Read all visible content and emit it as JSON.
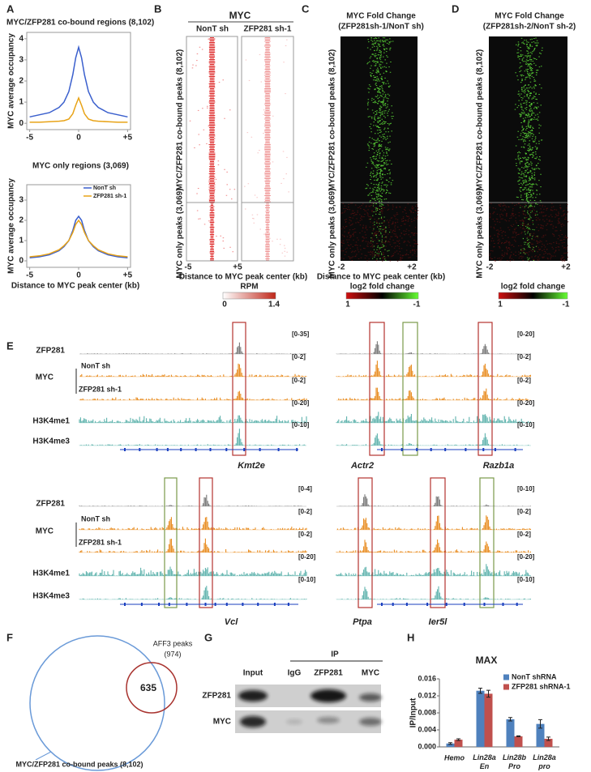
{
  "panel_labels": [
    "A",
    "B",
    "C",
    "D",
    "E",
    "F",
    "G",
    "H"
  ],
  "chart_data": [
    {
      "type": "line",
      "title": "MYC/ZFP281 co-bound regions (8,102)",
      "ylabel": "MYC average occupancy",
      "x": [
        -5,
        -4,
        -3,
        -2,
        -1.5,
        -1,
        -0.6,
        -0.3,
        0,
        0.3,
        0.6,
        1,
        1.5,
        2,
        3,
        4,
        5
      ],
      "series": [
        {
          "color": "#3a5fcd",
          "values": [
            0.3,
            0.4,
            0.5,
            0.75,
            1.0,
            1.5,
            2.3,
            3.1,
            3.6,
            3.1,
            2.3,
            1.5,
            1.0,
            0.75,
            0.5,
            0.4,
            0.3
          ]
        },
        {
          "color": "#e8a317",
          "values": [
            0.05,
            0.05,
            0.07,
            0.1,
            0.12,
            0.2,
            0.45,
            0.85,
            1.2,
            0.85,
            0.45,
            0.2,
            0.12,
            0.1,
            0.07,
            0.05,
            0.05
          ]
        }
      ],
      "xlim": [
        -5.3,
        5.3
      ],
      "xticks": [
        -5,
        0,
        {
          "value": 5,
          "label": "+5"
        }
      ],
      "ylim": [
        -0.3,
        4.3
      ],
      "yticks": [
        0,
        1,
        2,
        3,
        4
      ]
    },
    {
      "type": "line",
      "title": "MYC only regions (3,069)",
      "ylabel": "MYC average occupancy",
      "xlabel": "Distance to MYC peak center (kb)",
      "x": [
        -5,
        -4,
        -3,
        -2,
        -1.5,
        -1,
        -0.6,
        -0.3,
        0,
        0.3,
        0.6,
        1,
        1.5,
        2,
        3,
        4,
        5
      ],
      "series": [
        {
          "name": "NonT sh",
          "color": "#3a5fcd",
          "values": [
            0.15,
            0.2,
            0.3,
            0.5,
            0.7,
            1.0,
            1.5,
            2.0,
            2.2,
            2.0,
            1.5,
            1.0,
            0.7,
            0.5,
            0.3,
            0.2,
            0.15
          ]
        },
        {
          "name": "ZFP281 sh-1",
          "color": "#e8a317",
          "values": [
            0.2,
            0.25,
            0.35,
            0.55,
            0.75,
            1.0,
            1.4,
            1.8,
            2.0,
            1.8,
            1.4,
            1.0,
            0.75,
            0.55,
            0.35,
            0.25,
            0.2
          ]
        }
      ],
      "xlim": [
        -5.3,
        5.3
      ],
      "xticks": [
        -5,
        0,
        {
          "value": 5,
          "label": "+5"
        }
      ],
      "ylim": [
        -0.32,
        3.76
      ],
      "yticks": [
        0,
        1,
        2,
        3
      ],
      "legend": "upper right"
    },
    {
      "type": "bar",
      "title": "MAX",
      "ylabel": "IP/Input",
      "categories": [
        "Hemo",
        "Lin28a En",
        "Lin28b Pro",
        "Lin28a pro"
      ],
      "series": [
        {
          "name": "NonT shRNA",
          "color": "#4f81bd",
          "values": [
            0.0008,
            0.0132,
            0.0065,
            0.0054
          ],
          "errors": [
            0.0002,
            0.0006,
            0.0004,
            0.001
          ]
        },
        {
          "name": "ZFP281 shRNA-1",
          "color": "#c0504d",
          "values": [
            0.0017,
            0.0125,
            0.0025,
            0.0019
          ],
          "errors": [
            0.0002,
            0.0008,
            0.0001,
            0.0004
          ]
        }
      ],
      "ylim": [
        0,
        0.016
      ],
      "yticks": [
        {
          "value": 0,
          "label": "0.000"
        },
        {
          "value": 0.004,
          "label": "0.004"
        },
        {
          "value": 0.008,
          "label": "0.008"
        },
        {
          "value": 0.012,
          "label": "0.012"
        },
        {
          "value": 0.016,
          "label": "0.016"
        }
      ],
      "legend": "upper right"
    }
  ],
  "heatmaps": {
    "b": {
      "title": "MYC",
      "columns": [
        "NonT sh",
        "ZFP281 sh-1"
      ],
      "rows": [
        "MYC/ZFP281 co-bound peaks (8,102)",
        "MYC only peaks (3,069)"
      ],
      "xticks": [
        -5,
        {
          "value": 5,
          "label": "+5"
        }
      ],
      "xlabel": "Distance to MYC peak center (kb)",
      "colorbar": {
        "label": "RPM",
        "ticks": [
          0,
          1.4
        ]
      }
    },
    "c": {
      "title": "MYC Fold Change",
      "subtitle": "(ZFP281sh-1/NonT sh)",
      "rows": [
        "MYC/ZFP281 co-bound peaks (8,102)",
        "MYC only peaks (3,069)"
      ],
      "xticks": [
        -2,
        {
          "value": 2,
          "label": "+2"
        }
      ],
      "xlabel": "Distance to MYC peak center (kb)",
      "colorbar": {
        "label": "log2 fold change",
        "ticks": [
          1,
          -1
        ]
      }
    },
    "d": {
      "title": "MYC Fold Change",
      "subtitle": "(ZFP281sh-2/NonT sh-2)",
      "rows": [
        "MYC/ZFP281 co-bound peaks (8,102)",
        "MYC only peaks (3,069)"
      ],
      "xticks": [
        -2,
        {
          "value": 2,
          "label": "+2"
        }
      ],
      "colorbar": {
        "label": "log2 fold change",
        "ticks": [
          1,
          -1
        ]
      }
    }
  },
  "genome_tracks": [
    {
      "labels": {
        "zfp281": "ZFP281",
        "myc": "MYC",
        "nont": "NonT sh",
        "sh1": "ZFP281 sh-1",
        "h3k4me1": "H3K4me1",
        "h3k4me3": "H3K4me3"
      },
      "loci": [
        {
          "genes": [
            "Kmt2e"
          ],
          "ranges": [
            "[0-35]",
            "[0-2]",
            "[0-2]",
            "[0-20]",
            "[0-10]"
          ]
        },
        {
          "genes": [
            "Actr2",
            "Razb1a"
          ],
          "ranges": [
            "[0-20]",
            "[0-2]",
            "[0-2]",
            "[0-20]",
            "[0-10]"
          ]
        }
      ]
    },
    {
      "labels": {
        "zfp281": "ZFP281",
        "myc": "MYC",
        "nont": "NonT sh",
        "sh1": "ZFP281 sh-1",
        "h3k4me1": "H3K4me1",
        "h3k4me3": "H3K4me3"
      },
      "loci": [
        {
          "genes": [
            "Vcl"
          ],
          "ranges": [
            "[0-4]",
            "[0-2]",
            "[0-2]",
            "[0-20]",
            "[0-10]"
          ]
        },
        {
          "genes": [
            "Ptpa",
            "Ier5l"
          ],
          "ranges": [
            "[0-10]",
            "[0-2]",
            "[0-2]",
            "[0-20]",
            "[0-10]"
          ]
        }
      ]
    }
  ],
  "venn": {
    "total_label": "MYC/ZFP281 co-bound peaks (8,102)",
    "subset_label": "AFF3 peaks",
    "subset_count": "(974)",
    "overlap": 635
  },
  "blot": {
    "ip": "IP",
    "lanes": [
      "Input",
      "IgG",
      "ZFP281",
      "MYC"
    ],
    "rows": [
      "ZFP281",
      "MYC"
    ]
  }
}
